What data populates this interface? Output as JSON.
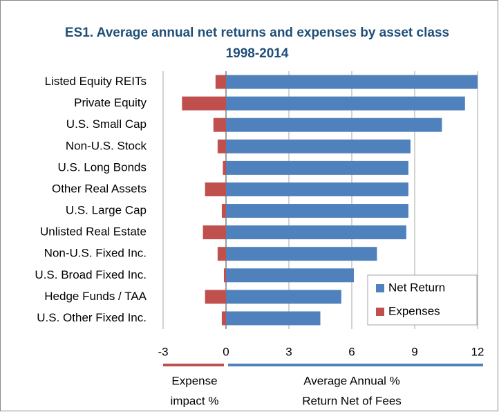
{
  "chart_data": {
    "type": "hbar",
    "title": [
      "ES1. Average annual net returns and expenses by asset class",
      "1998-2014"
    ],
    "categories": [
      "Listed Equity REITs",
      "Private Equity",
      "U.S. Small Cap",
      "Non-U.S. Stock",
      "U.S. Long Bonds",
      "Other Real Assets",
      "U.S. Large Cap",
      "Unlisted Real Estate",
      "Non-U.S. Fixed Inc.",
      "U.S. Broad Fixed Inc.",
      "Hedge Funds / TAA",
      "U.S. Other Fixed Inc."
    ],
    "series": [
      {
        "name": "Net Return",
        "color": "#4f81bd",
        "values": [
          12.0,
          11.4,
          10.3,
          8.8,
          8.7,
          8.7,
          8.7,
          8.6,
          7.2,
          6.1,
          5.5,
          4.5
        ]
      },
      {
        "name": "Expenses",
        "color": "#c0504d",
        "values": [
          -0.5,
          -2.1,
          -0.6,
          -0.4,
          -0.15,
          -1.0,
          -0.2,
          -1.1,
          -0.4,
          -0.1,
          -1.0,
          -0.2
        ]
      }
    ],
    "xlim": [
      -3,
      12
    ],
    "xticks": [
      -3,
      0,
      3,
      6,
      9,
      12
    ],
    "grid": true,
    "xlabel_left": [
      "Expense",
      "impact %"
    ],
    "xlabel_right": [
      "Average Annual %",
      "Return Net of Fees"
    ],
    "legend": "lower right"
  }
}
